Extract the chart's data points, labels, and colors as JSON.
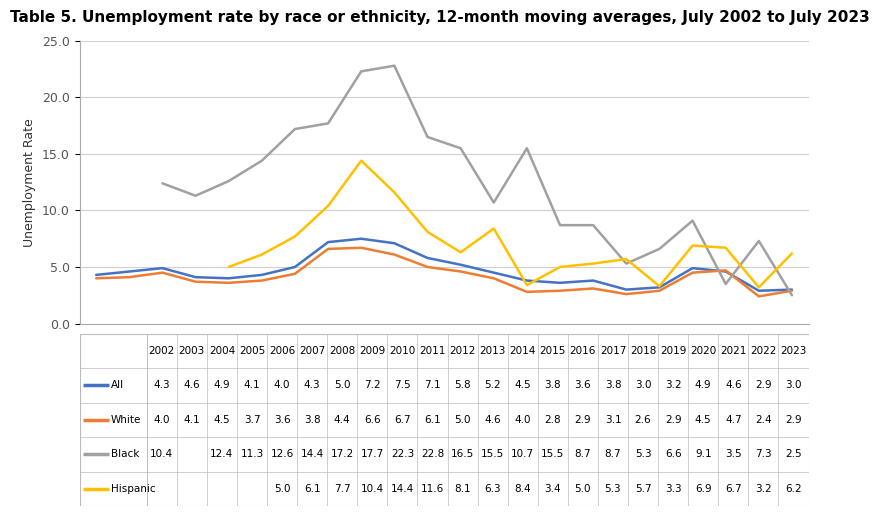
{
  "title": "Table 5. Unemployment rate by race or ethnicity, 12-month moving averages, July 2002 to July 2023",
  "ylabel": "Unemployment Rate",
  "years": [
    2002,
    2003,
    2004,
    2005,
    2006,
    2007,
    2008,
    2009,
    2010,
    2011,
    2012,
    2013,
    2014,
    2015,
    2016,
    2017,
    2018,
    2019,
    2020,
    2021,
    2022,
    2023
  ],
  "series": {
    "All": {
      "color": "#4472C4",
      "values": [
        4.3,
        4.6,
        4.9,
        4.1,
        4.0,
        4.3,
        5.0,
        7.2,
        7.5,
        7.1,
        5.8,
        5.2,
        4.5,
        3.8,
        3.6,
        3.8,
        3.0,
        3.2,
        4.9,
        4.6,
        2.9,
        3.0
      ]
    },
    "White": {
      "color": "#ED7D31",
      "values": [
        4.0,
        4.1,
        4.5,
        3.7,
        3.6,
        3.8,
        4.4,
        6.6,
        6.7,
        6.1,
        5.0,
        4.6,
        4.0,
        2.8,
        2.9,
        3.1,
        2.6,
        2.9,
        4.5,
        4.7,
        2.4,
        2.9
      ]
    },
    "Black": {
      "color": "#A0A0A0",
      "values": [
        10.4,
        null,
        12.4,
        11.3,
        12.6,
        14.4,
        17.2,
        17.7,
        22.3,
        22.8,
        16.5,
        15.5,
        10.7,
        15.5,
        8.7,
        8.7,
        5.3,
        6.6,
        9.1,
        3.5,
        7.3,
        2.5
      ]
    },
    "Hispanic": {
      "color": "#FFC000",
      "values": [
        null,
        null,
        null,
        null,
        5.0,
        6.1,
        7.7,
        10.4,
        14.4,
        11.6,
        8.1,
        6.3,
        8.4,
        3.4,
        5.0,
        5.3,
        5.7,
        3.3,
        6.9,
        6.7,
        3.2,
        6.2
      ]
    }
  },
  "table_rows": [
    [
      "All",
      "4.3",
      "4.6",
      "4.9",
      "4.1",
      "4.0",
      "4.3",
      "5.0",
      "7.2",
      "7.5",
      "7.1",
      "5.8",
      "5.2",
      "4.5",
      "3.8",
      "3.6",
      "3.8",
      "3.0",
      "3.2",
      "4.9",
      "4.6",
      "2.9",
      "3.0"
    ],
    [
      "White",
      "4.0",
      "4.1",
      "4.5",
      "3.7",
      "3.6",
      "3.8",
      "4.4",
      "6.6",
      "6.7",
      "6.1",
      "5.0",
      "4.6",
      "4.0",
      "2.8",
      "2.9",
      "3.1",
      "2.6",
      "2.9",
      "4.5",
      "4.7",
      "2.4",
      "2.9"
    ],
    [
      "Black",
      "10.4",
      "",
      "12.4",
      "11.3",
      "12.6",
      "14.4",
      "17.2",
      "17.7",
      "22.3",
      "22.8",
      "16.5",
      "15.5",
      "10.7",
      "15.5",
      "8.7",
      "8.7",
      "5.3",
      "6.6",
      "9.1",
      "3.5",
      "7.3",
      "2.5"
    ],
    [
      "Hispanic",
      "",
      "",
      "",
      "",
      "5.0",
      "6.1",
      "7.7",
      "10.4",
      "14.4",
      "11.6",
      "8.1",
      "6.3",
      "8.4",
      "3.4",
      "5.0",
      "5.3",
      "5.7",
      "3.3",
      "6.9",
      "6.7",
      "3.2",
      "6.2"
    ]
  ],
  "series_order": [
    "All",
    "White",
    "Black",
    "Hispanic"
  ],
  "series_colors": {
    "All": "#4472C4",
    "White": "#ED7D31",
    "Black": "#A0A0A0",
    "Hispanic": "#FFC000"
  },
  "ylim": [
    0.0,
    25.0
  ],
  "yticks": [
    0.0,
    5.0,
    10.0,
    15.0,
    20.0,
    25.0
  ],
  "background_color": "#FFFFFF",
  "grid_color": "#D0D0D0",
  "title_fontsize": 11,
  "axis_label_fontsize": 9,
  "tick_fontsize": 9,
  "table_fontsize": 7.5,
  "line_width": 1.8
}
